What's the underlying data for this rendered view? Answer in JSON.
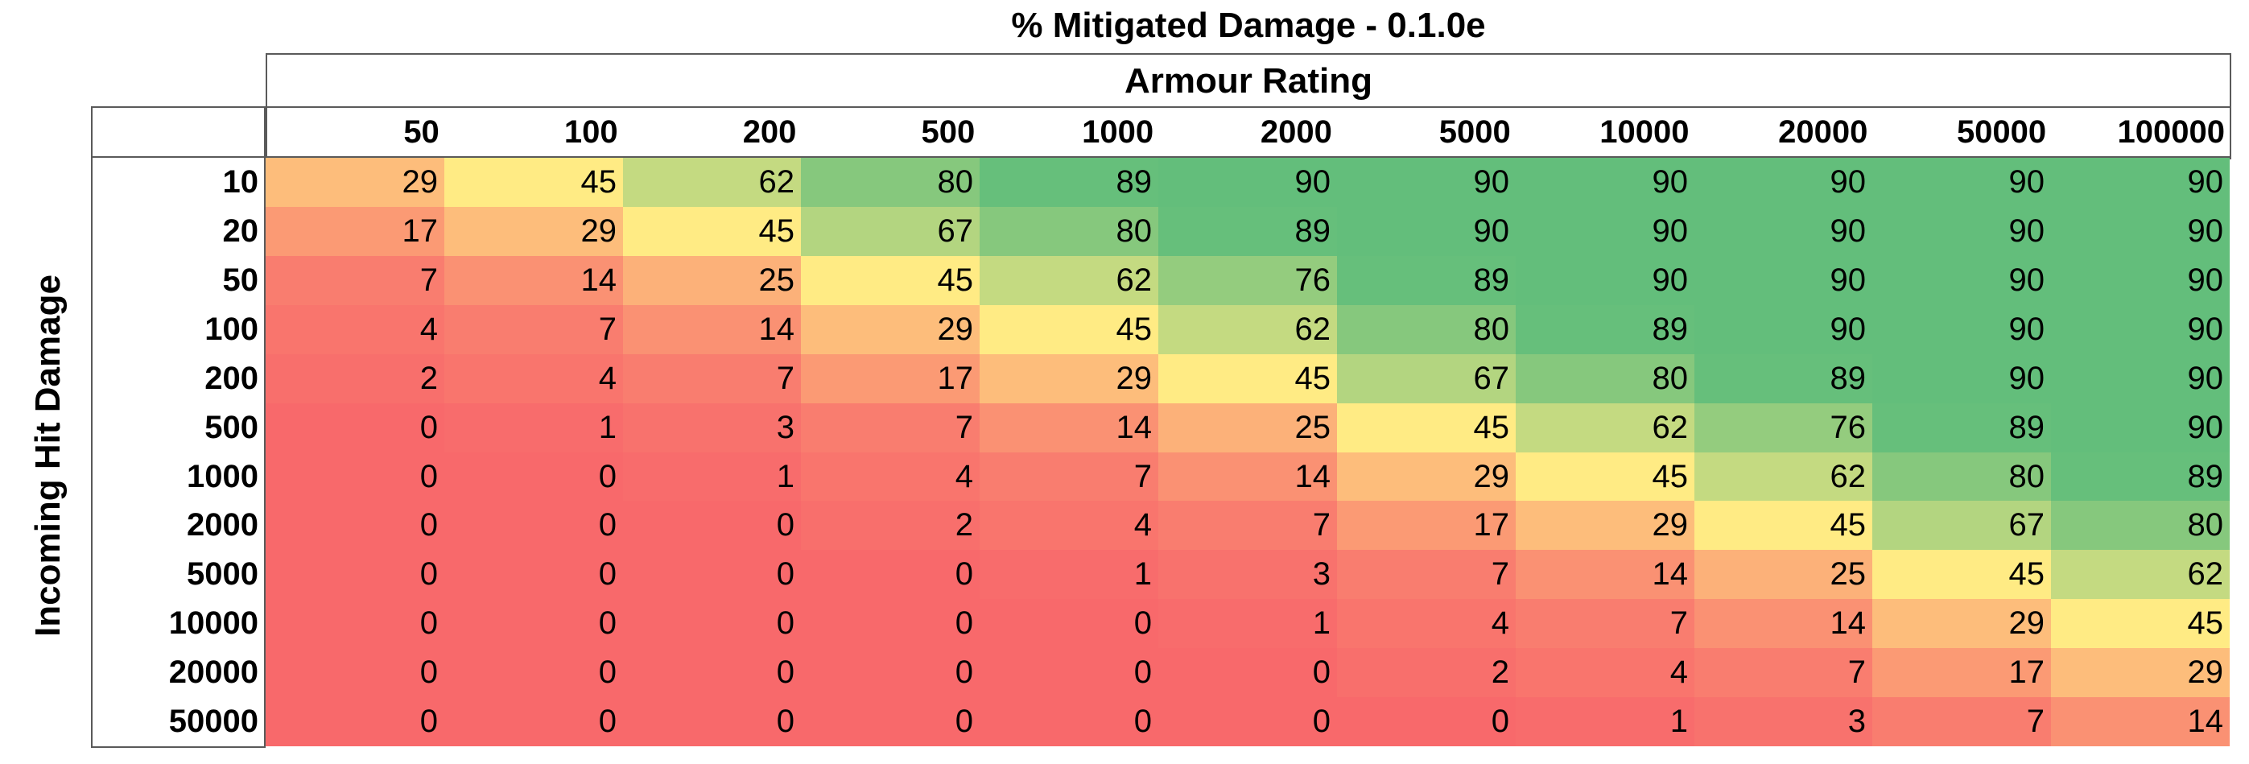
{
  "chart_data": {
    "type": "heatmap",
    "title": "% Mitigated Damage - 0.1.0e",
    "xlabel": "Armour Rating",
    "ylabel": "Incoming Hit Damage",
    "x_categories": [
      "50",
      "100",
      "200",
      "500",
      "1000",
      "2000",
      "5000",
      "10000",
      "20000",
      "50000",
      "100000"
    ],
    "y_categories": [
      "10",
      "20",
      "50",
      "100",
      "200",
      "500",
      "1000",
      "2000",
      "5000",
      "10000",
      "20000",
      "50000"
    ],
    "values": [
      [
        29,
        45,
        62,
        80,
        89,
        90,
        90,
        90,
        90,
        90,
        90
      ],
      [
        17,
        29,
        45,
        67,
        80,
        89,
        90,
        90,
        90,
        90,
        90
      ],
      [
        7,
        14,
        25,
        45,
        62,
        76,
        89,
        90,
        90,
        90,
        90
      ],
      [
        4,
        7,
        14,
        29,
        45,
        62,
        80,
        89,
        90,
        90,
        90
      ],
      [
        2,
        4,
        7,
        17,
        29,
        45,
        67,
        80,
        89,
        90,
        90
      ],
      [
        0,
        1,
        3,
        7,
        14,
        25,
        45,
        62,
        76,
        89,
        90
      ],
      [
        0,
        0,
        1,
        4,
        7,
        14,
        29,
        45,
        62,
        80,
        89
      ],
      [
        0,
        0,
        0,
        2,
        4,
        7,
        17,
        29,
        45,
        67,
        80
      ],
      [
        0,
        0,
        0,
        0,
        1,
        3,
        7,
        14,
        25,
        45,
        62
      ],
      [
        0,
        0,
        0,
        0,
        0,
        1,
        4,
        7,
        14,
        29,
        45
      ],
      [
        0,
        0,
        0,
        0,
        0,
        0,
        2,
        4,
        7,
        17,
        29
      ],
      [
        0,
        0,
        0,
        0,
        0,
        0,
        0,
        1,
        3,
        7,
        14
      ]
    ],
    "color_scale": {
      "min_color": "#f8696b",
      "mid_color": "#ffeb84",
      "max_color": "#63be7b"
    }
  }
}
